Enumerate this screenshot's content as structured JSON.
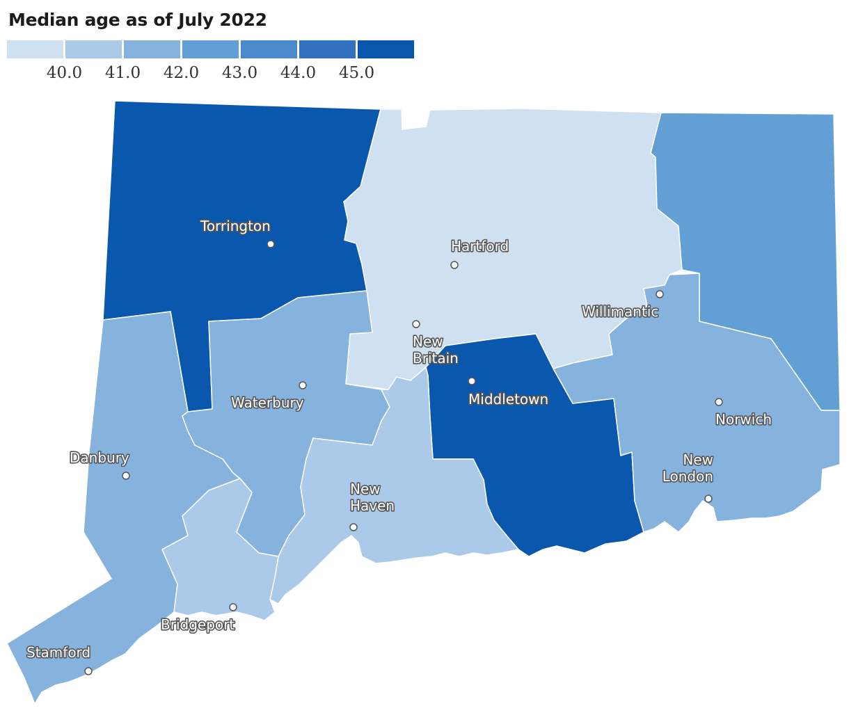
{
  "title": "Median age as of July 2022",
  "legend": {
    "colors": [
      "#cfe1f0",
      "#abc9e8",
      "#86b2de",
      "#629fd4",
      "#4a89cb",
      "#3171c0",
      "#0a58ad"
    ],
    "ticks": [
      "40.0",
      "41.0",
      "42.0",
      "43.0",
      "44.0",
      "45.0"
    ]
  },
  "regions": [
    {
      "id": "northwest-hills",
      "color": "#0a58ad"
    },
    {
      "id": "capitol",
      "color": "#cfe1f0"
    },
    {
      "id": "northeastern",
      "color": "#629fd4"
    },
    {
      "id": "western",
      "color": "#86b2de"
    },
    {
      "id": "naugatuck-valley",
      "color": "#86b2de"
    },
    {
      "id": "lower-ct-river-valley",
      "color": "#0a58ad"
    },
    {
      "id": "southeastern",
      "color": "#86b2de"
    },
    {
      "id": "south-central",
      "color": "#abc9e8"
    },
    {
      "id": "greater-bridgeport",
      "color": "#abc9e8"
    }
  ],
  "cities": [
    {
      "name": "Torrington",
      "lines": [
        "Torrington"
      ]
    },
    {
      "name": "Hartford",
      "lines": [
        "Hartford"
      ]
    },
    {
      "name": "Willimantic",
      "lines": [
        "Willimantic"
      ]
    },
    {
      "name": "New Britain",
      "lines": [
        "New",
        "Britain"
      ]
    },
    {
      "name": "Middletown",
      "lines": [
        "Middletown"
      ]
    },
    {
      "name": "Waterbury",
      "lines": [
        "Waterbury"
      ]
    },
    {
      "name": "Norwich",
      "lines": [
        "Norwich"
      ]
    },
    {
      "name": "Danbury",
      "lines": [
        "Danbury"
      ]
    },
    {
      "name": "New London",
      "lines": [
        "New",
        "London"
      ]
    },
    {
      "name": "New Haven",
      "lines": [
        "New",
        "Haven"
      ]
    },
    {
      "name": "Bridgeport",
      "lines": [
        "Bridgeport"
      ]
    },
    {
      "name": "Stamford",
      "lines": [
        "Stamford"
      ]
    }
  ]
}
